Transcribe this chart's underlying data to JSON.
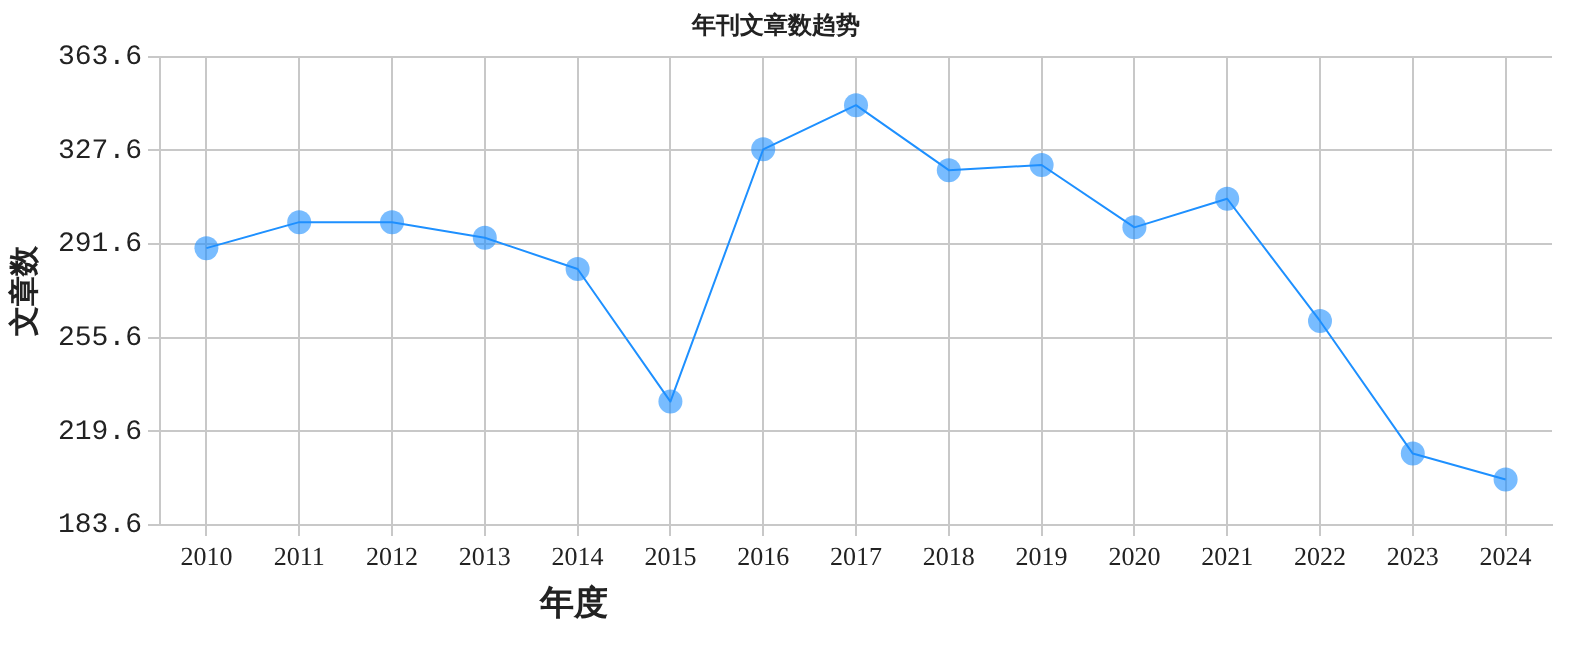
{
  "chart_data": {
    "type": "line",
    "title": "年刊文章数趋势",
    "xlabel": "年度",
    "ylabel": "文章数",
    "categories": [
      "2010",
      "2011",
      "2012",
      "2013",
      "2014",
      "2015",
      "2016",
      "2017",
      "2018",
      "2019",
      "2020",
      "2021",
      "2022",
      "2023",
      "2024"
    ],
    "series": [
      {
        "color": "#1e90ff",
        "values": [
          290,
          300,
          300,
          294,
          282,
          231,
          328,
          345,
          320,
          322,
          298,
          309,
          262,
          211,
          201
        ]
      }
    ],
    "ylim": [
      183.6,
      363.6
    ],
    "yticks": [
      183.6,
      219.6,
      255.6,
      291.6,
      327.6,
      363.6
    ],
    "grid": true,
    "legend": false,
    "marker": "circle",
    "line_style": "solid"
  }
}
